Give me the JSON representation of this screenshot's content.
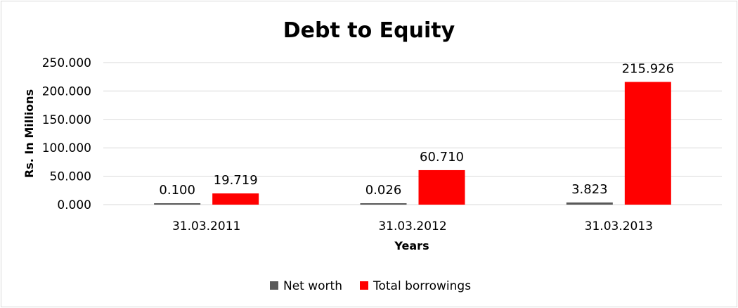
{
  "chart_data": {
    "type": "bar",
    "title": "Debt to Equity",
    "xlabel": "Years",
    "ylabel": "Rs. In Millions",
    "categories": [
      "31.03.2011",
      "31.03.2012",
      "31.03.2013"
    ],
    "series": [
      {
        "name": "Net worth",
        "color": "#595959",
        "values": [
          0.1,
          0.026,
          3.823
        ],
        "labels": [
          "0.100",
          "0.026",
          "3.823"
        ]
      },
      {
        "name": "Total borrowings",
        "color": "#ff0000",
        "values": [
          19.719,
          60.71,
          215.926
        ],
        "labels": [
          "19.719",
          "60.710",
          "215.926"
        ]
      }
    ],
    "ylim": [
      0,
      250
    ],
    "yticks": [
      "0.000",
      "50.000",
      "100.000",
      "150.000",
      "200.000",
      "250.000"
    ],
    "grid": true,
    "legend": "bottom"
  }
}
